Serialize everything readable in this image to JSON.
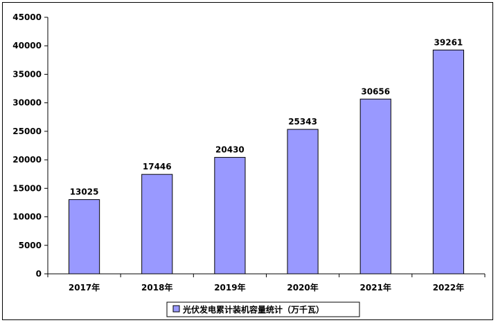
{
  "chart_data": {
    "type": "bar",
    "categories": [
      "2017年",
      "2018年",
      "2019年",
      "2020年",
      "2021年",
      "2022年"
    ],
    "series": [
      {
        "name": "光伏发电累计装机容量统计（万千瓦）",
        "values": [
          13025,
          17446,
          20430,
          25343,
          30656,
          39261
        ]
      }
    ],
    "data_labels": [
      "13025",
      "17446",
      "20430",
      "25343",
      "30656",
      "39261"
    ],
    "ylim": [
      0,
      45000
    ],
    "y_ticks": [
      0,
      5000,
      10000,
      15000,
      20000,
      25000,
      30000,
      35000,
      40000,
      45000
    ],
    "y_tick_labels": [
      "0",
      "5000",
      "10000",
      "15000",
      "20000",
      "25000",
      "30000",
      "35000",
      "40000",
      "45000"
    ],
    "grid": false,
    "legend_position": "bottom",
    "colors": {
      "bar_fill": "#9999ff",
      "bar_stroke": "#000000",
      "axis": "#000000"
    }
  }
}
